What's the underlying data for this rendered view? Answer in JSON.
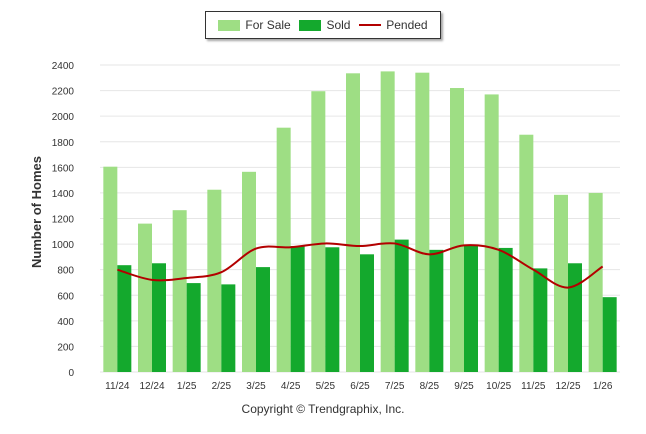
{
  "chart_data": {
    "type": "bar",
    "categories": [
      "11/24",
      "12/24",
      "1/25",
      "2/25",
      "3/25",
      "4/25",
      "5/25",
      "6/25",
      "7/25",
      "8/25",
      "9/25",
      "10/25",
      "11/25",
      "12/25",
      "1/26"
    ],
    "series": [
      {
        "name": "For Sale",
        "type": "bar",
        "color": "#9ede84",
        "values": [
          1605,
          1160,
          1265,
          1425,
          1565,
          1910,
          2195,
          2335,
          2350,
          2340,
          2220,
          2170,
          1855,
          1385,
          1400
        ]
      },
      {
        "name": "Sold",
        "type": "bar",
        "color": "#14a92d",
        "values": [
          835,
          850,
          695,
          685,
          820,
          985,
          975,
          920,
          1035,
          955,
          985,
          970,
          810,
          850,
          585
        ]
      },
      {
        "name": "Pended",
        "type": "line",
        "color": "#b30000",
        "values": [
          800,
          720,
          735,
          780,
          965,
          975,
          1005,
          985,
          1005,
          920,
          990,
          955,
          800,
          660,
          825
        ]
      }
    ],
    "title": "",
    "xlabel": "",
    "ylabel": "Number of Homes",
    "ylim": [
      0,
      2400
    ],
    "yticks": [
      0,
      200,
      400,
      600,
      800,
      1000,
      1200,
      1400,
      1600,
      1800,
      2000,
      2200,
      2400
    ],
    "grid": true,
    "legend": "top-center"
  },
  "footer": {
    "copyright": "Copyright © Trendgraphix, Inc."
  }
}
